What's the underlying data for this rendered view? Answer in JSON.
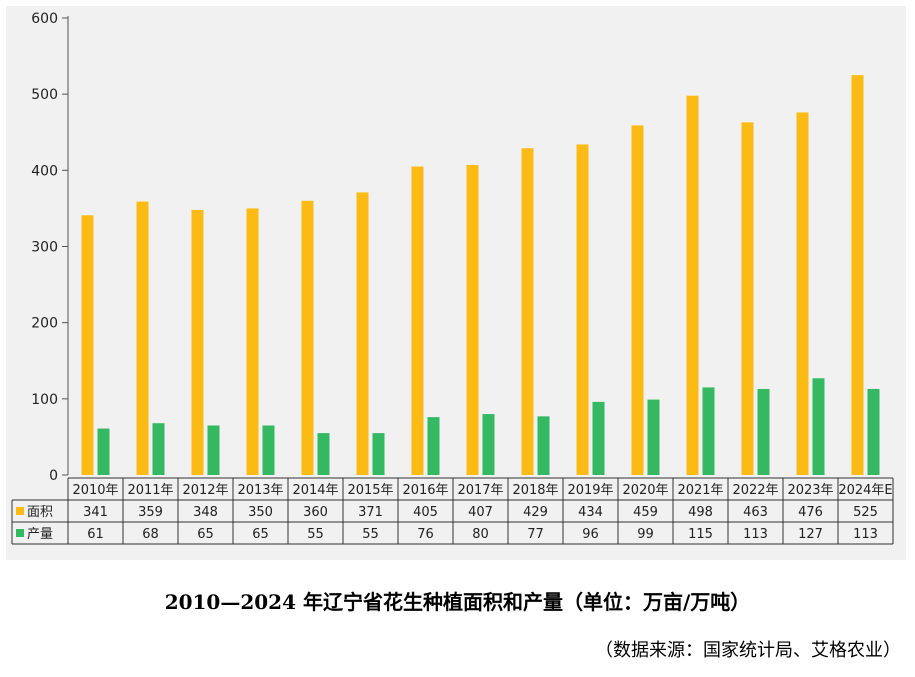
{
  "chart_data": {
    "type": "bar",
    "title": "2010—2024 年辽宁省花生种植面积和产量（单位：万亩/万吨）",
    "source": "（数据来源：国家统计局、艾格农业）",
    "categories": [
      "2010年",
      "2011年",
      "2012年",
      "2013年",
      "2014年",
      "2015年",
      "2016年",
      "2017年",
      "2018年",
      "2019年",
      "2020年",
      "2021年",
      "2022年",
      "2023年",
      "2024年E"
    ],
    "series": [
      {
        "name": "面积",
        "color": "#fbbb14",
        "values": [
          341,
          359,
          348,
          350,
          360,
          371,
          405,
          407,
          429,
          434,
          459,
          498,
          463,
          476,
          525
        ]
      },
      {
        "name": "产量",
        "color": "#35b862",
        "values": [
          61,
          68,
          65,
          65,
          55,
          55,
          76,
          80,
          77,
          96,
          99,
          115,
          113,
          127,
          113
        ]
      }
    ],
    "yticks": [
      0,
      100,
      200,
      300,
      400,
      500,
      600
    ],
    "ylim": [
      0,
      600
    ],
    "grid": false,
    "legend": "data-table"
  }
}
